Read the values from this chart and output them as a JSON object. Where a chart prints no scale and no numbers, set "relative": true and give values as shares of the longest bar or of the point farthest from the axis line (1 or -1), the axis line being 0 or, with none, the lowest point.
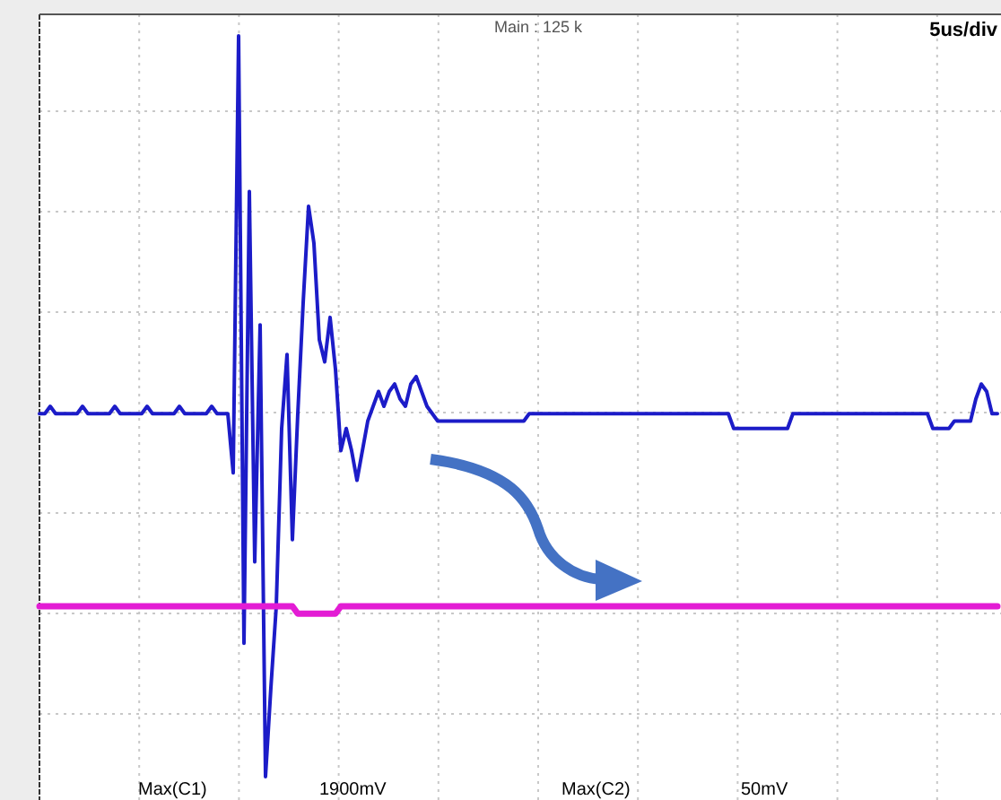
{
  "chart_data": {
    "type": "line",
    "relative": true,
    "grid": true,
    "annotations": [
      "Main : 125 k",
      "5us/div",
      "Max(C1)",
      "1900mV",
      "Max(C2)",
      "50mV"
    ],
    "categories": [
      null,
      null,
      null,
      null,
      null,
      null,
      null,
      null,
      null,
      null,
      null,
      null,
      null,
      null,
      null,
      null,
      null,
      null,
      null,
      null,
      null,
      null,
      null,
      null,
      null,
      null,
      null,
      null,
      null,
      null,
      null,
      null,
      null,
      null,
      null,
      null,
      null,
      null,
      null,
      null,
      null,
      null,
      null,
      null,
      null,
      null,
      null,
      null,
      null,
      null,
      null,
      null,
      null,
      null,
      null,
      null,
      null,
      null,
      null,
      null,
      null,
      null,
      null,
      null,
      null,
      null,
      null,
      null,
      null,
      null,
      null,
      null,
      null,
      null,
      null,
      null,
      null,
      null,
      null,
      null,
      null,
      null,
      null,
      null,
      null,
      null,
      null,
      null,
      null,
      null,
      null,
      null,
      null,
      null,
      null,
      null,
      null,
      null,
      null,
      null,
      null,
      null,
      null,
      null,
      null,
      null,
      null,
      null,
      null,
      null,
      null,
      null,
      null,
      null,
      null,
      null,
      null,
      null,
      null,
      null,
      null,
      null,
      null,
      null,
      null,
      null,
      null,
      null,
      null,
      null,
      null,
      null,
      null,
      null,
      null,
      null,
      null,
      null,
      null,
      null,
      null,
      null,
      null,
      null,
      null,
      null,
      null,
      null,
      null,
      null,
      null,
      null,
      null,
      null,
      null,
      null,
      null,
      null,
      null,
      null,
      null,
      null,
      null,
      null,
      null,
      null,
      null,
      null,
      null,
      null,
      null,
      null,
      null,
      null,
      null,
      null,
      null,
      null,
      null
    ],
    "series": [
      {
        "color": "#1c1cc8",
        "values": [
          0.49,
          0.49,
          0.5,
          0.49,
          0.49,
          0.49,
          0.49,
          0.49,
          0.5,
          0.49,
          0.49,
          0.49,
          0.49,
          0.49,
          0.5,
          0.49,
          0.49,
          0.49,
          0.49,
          0.49,
          0.5,
          0.49,
          0.49,
          0.49,
          0.49,
          0.49,
          0.5,
          0.49,
          0.49,
          0.49,
          0.49,
          0.49,
          0.5,
          0.49,
          0.49,
          0.49,
          0.41,
          1,
          0.18,
          0.79,
          0.29,
          0.61,
          0,
          0.12,
          0.23,
          0.47,
          0.57,
          0.32,
          0.49,
          0.64,
          0.77,
          0.72,
          0.59,
          0.56,
          0.62,
          0.55,
          0.44,
          0.47,
          0.44,
          0.4,
          0.44,
          0.48,
          0.5,
          0.52,
          0.5,
          0.52,
          0.53,
          0.51,
          0.5,
          0.53,
          0.54,
          0.52,
          0.5,
          0.49,
          0.48,
          0.48,
          0.48,
          0.48,
          0.48,
          0.48,
          0.48,
          0.48,
          0.48,
          0.48,
          0.48,
          0.48,
          0.48,
          0.48,
          0.48,
          0.48,
          0.48,
          0.49,
          0.49,
          0.49,
          0.49,
          0.49,
          0.49,
          0.49,
          0.49,
          0.49,
          0.49,
          0.49,
          0.49,
          0.49,
          0.49,
          0.49,
          0.49,
          0.49,
          0.49,
          0.49,
          0.49,
          0.49,
          0.49,
          0.49,
          0.49,
          0.49,
          0.49,
          0.49,
          0.49,
          0.49,
          0.49,
          0.49,
          0.49,
          0.49,
          0.49,
          0.49,
          0.49,
          0.49,
          0.49,
          0.47,
          0.47,
          0.47,
          0.47,
          0.47,
          0.47,
          0.47,
          0.47,
          0.47,
          0.47,
          0.47,
          0.49,
          0.49,
          0.49,
          0.49,
          0.49,
          0.49,
          0.49,
          0.49,
          0.49,
          0.49,
          0.49,
          0.49,
          0.49,
          0.49,
          0.49,
          0.49,
          0.49,
          0.49,
          0.49,
          0.49,
          0.49,
          0.49,
          0.49,
          0.49,
          0.49,
          0.49,
          0.47,
          0.47,
          0.47,
          0.47,
          0.48,
          0.48,
          0.48,
          0.48,
          0.51,
          0.53,
          0.52,
          0.49,
          0.49
        ]
      },
      {
        "color": "#e31cd4",
        "values": [
          0.23,
          0.23,
          0.23,
          0.23,
          0.23,
          0.23,
          0.23,
          0.23,
          0.23,
          0.23,
          0.23,
          0.23,
          0.23,
          0.23,
          0.23,
          0.23,
          0.23,
          0.23,
          0.23,
          0.23,
          0.23,
          0.23,
          0.23,
          0.23,
          0.23,
          0.23,
          0.23,
          0.23,
          0.23,
          0.23,
          0.23,
          0.23,
          0.23,
          0.23,
          0.23,
          0.23,
          0.23,
          0.23,
          0.23,
          0.23,
          0.23,
          0.23,
          0.23,
          0.23,
          0.23,
          0.23,
          0.23,
          0.23,
          0.22,
          0.22,
          0.22,
          0.22,
          0.22,
          0.22,
          0.22,
          0.22,
          0.23,
          0.23,
          0.23,
          0.23,
          0.23,
          0.23,
          0.23,
          0.23,
          0.23,
          0.23,
          0.23,
          0.23,
          0.23,
          0.23,
          0.23,
          0.23,
          0.23,
          0.23,
          0.23,
          0.23,
          0.23,
          0.23,
          0.23,
          0.23,
          0.23,
          0.23,
          0.23,
          0.23,
          0.23,
          0.23,
          0.23,
          0.23,
          0.23,
          0.23,
          0.23,
          0.23,
          0.23,
          0.23,
          0.23,
          0.23,
          0.23,
          0.23,
          0.23,
          0.23,
          0.23,
          0.23,
          0.23,
          0.23,
          0.23,
          0.23,
          0.23,
          0.23,
          0.23,
          0.23,
          0.23,
          0.23,
          0.23,
          0.23,
          0.23,
          0.23,
          0.23,
          0.23,
          0.23,
          0.23,
          0.23,
          0.23,
          0.23,
          0.23,
          0.23,
          0.23,
          0.23,
          0.23,
          0.23,
          0.23,
          0.23,
          0.23,
          0.23,
          0.23,
          0.23,
          0.23,
          0.23,
          0.23,
          0.23,
          0.23,
          0.23,
          0.23,
          0.23,
          0.23,
          0.23,
          0.23,
          0.23,
          0.23,
          0.23,
          0.23,
          0.23,
          0.23,
          0.23,
          0.23,
          0.23,
          0.23,
          0.23,
          0.23,
          0.23,
          0.23,
          0.23,
          0.23,
          0.23,
          0.23,
          0.23,
          0.23,
          0.23,
          0.23,
          0.23,
          0.23,
          0.23,
          0.23,
          0.23,
          0.23,
          0.23,
          0.23,
          0.23,
          0.23,
          0.23
        ]
      }
    ]
  }
}
